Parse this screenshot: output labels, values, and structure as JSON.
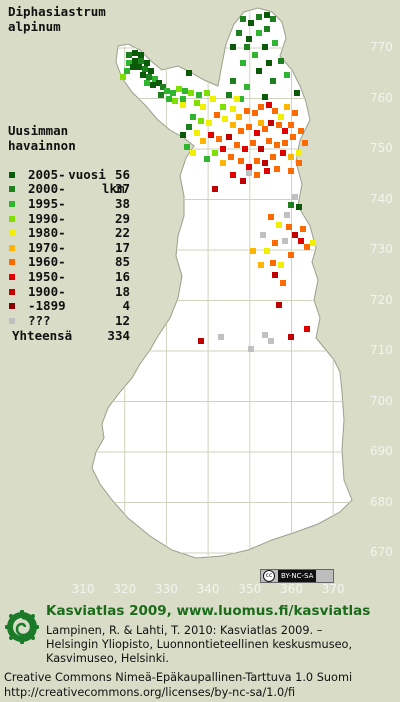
{
  "map": {
    "species_line1": "Diphasiastrum",
    "species_line2": "alpinum",
    "y_ticks": [
      "770",
      "760",
      "750",
      "740",
      "730",
      "720",
      "710",
      "700",
      "690",
      "680",
      "670"
    ],
    "x_ticks": [
      "310",
      "320",
      "330",
      "340",
      "350",
      "360",
      "370"
    ],
    "colors": {
      "land": "#ffffff",
      "sea": "#d9dcc7",
      "grid": "#d0d3bd",
      "border": "#9aa08c"
    }
  },
  "legend": {
    "heading": [
      "Uusimman",
      "havainnon",
      "vuosi"
    ],
    "count_heading": "lkm",
    "rows": [
      {
        "period": "2005-",
        "count": "56",
        "color": "#0a5a0a"
      },
      {
        "period": "2000-",
        "count": "37",
        "color": "#1e7f1e"
      },
      {
        "period": "1995-",
        "count": "38",
        "color": "#2fb52f"
      },
      {
        "period": "1990-",
        "count": "29",
        "color": "#7fe000"
      },
      {
        "period": "1980-",
        "count": "22",
        "color": "#f0f000"
      },
      {
        "period": "1970-",
        "count": "17",
        "color": "#ffb400"
      },
      {
        "period": "1960-",
        "count": "85",
        "color": "#ff6a00"
      },
      {
        "period": "1950-",
        "count": "16",
        "color": "#e00000"
      },
      {
        "period": "1900-",
        "count": "18",
        "color": "#c00000"
      },
      {
        "period": "-1899",
        "count": "4",
        "color": "#8a0000"
      },
      {
        "period": "???",
        "count": "12",
        "color": "#c0c0c0"
      }
    ],
    "total_label": "Yhteensä",
    "total_count": "334"
  },
  "license_badge": {
    "cc": "cc",
    "terms": "BY-NC-SA"
  },
  "footer": {
    "title": "Kasviatlas 2009, www.luomus.fi/kasviatlas",
    "ref_line1": "Lampinen, R. & Lahti, T. 2010: Kasviatlas 2009. –",
    "ref_line2": "Helsingin Yliopisto, Luonnontieteellinen keskusmuseo,",
    "ref_line3": "Kasvimuseo, Helsinki.",
    "license_line1": "Creative Commons Nimeä-Epäkaupallinen-Tarttuva 1.0 Suomi",
    "license_line2": "http://creativecommons.org/licenses/by-nc-sa/1.0/fi"
  }
}
